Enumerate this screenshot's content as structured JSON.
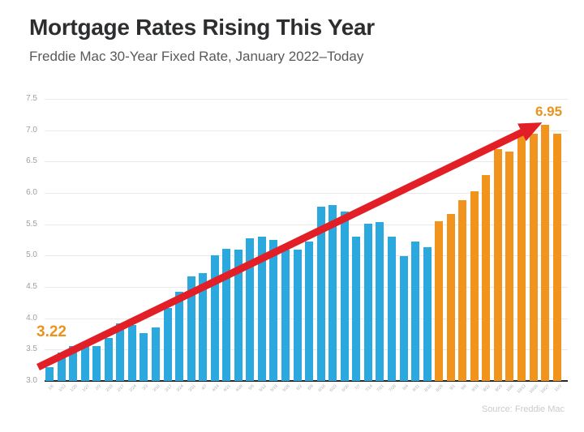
{
  "header": {
    "title": "Mortgage Rates Rising This Year",
    "subtitle": "Freddie Mac 30-Year Fixed Rate, January 2022–Today"
  },
  "chart_data": {
    "type": "bar",
    "title": "Mortgage Rates Rising This Year",
    "subtitle": "Freddie Mac 30-Year Fixed Rate, January 2022–Today",
    "categories": [
      "1/6",
      "1/13",
      "1/20",
      "1/27",
      "2/3",
      "2/10",
      "2/17",
      "2/24",
      "3/3",
      "3/10",
      "3/17",
      "3/24",
      "3/31",
      "4/7",
      "4/14",
      "4/21",
      "4/28",
      "5/5",
      "5/12",
      "5/19",
      "5/26",
      "6/2",
      "6/9",
      "6/16",
      "6/23",
      "6/30",
      "7/7",
      "7/14",
      "7/21",
      "7/28",
      "8/4",
      "8/11",
      "8/18",
      "8/25",
      "9/1",
      "9/8",
      "9/15",
      "9/22",
      "9/29",
      "10/6",
      "10/13",
      "10/20",
      "10/27",
      "11/3"
    ],
    "values": [
      3.22,
      3.45,
      3.56,
      3.55,
      3.55,
      3.69,
      3.92,
      3.89,
      3.76,
      3.85,
      4.16,
      4.42,
      4.67,
      4.72,
      5.0,
      5.11,
      5.1,
      5.27,
      5.3,
      5.25,
      5.1,
      5.09,
      5.23,
      5.78,
      5.81,
      5.7,
      5.3,
      5.51,
      5.54,
      5.3,
      4.99,
      5.22,
      5.13,
      5.55,
      5.66,
      5.89,
      6.02,
      6.29,
      6.7,
      6.66,
      6.92,
      6.94,
      7.08,
      6.95
    ],
    "xlabel": "",
    "ylabel": "",
    "ylim": [
      3.0,
      7.5
    ],
    "ytick_step": 0.5,
    "ytick_labels": [
      "3.0",
      "3.5",
      "4.0",
      "4.5",
      "5.0",
      "5.5",
      "6.0",
      "6.5",
      "7.0",
      "7.5"
    ],
    "grid": true,
    "bar_colors": {
      "default": "#2ba9de",
      "highlight": "#f0941e",
      "highlight_from_index": 33
    },
    "annotations": {
      "start_value_label": "3.22",
      "end_value_label": "6.95",
      "value_label_color": "#e8941d",
      "trend_arrow_color": "#e21e26"
    },
    "source": "Source: Freddie Mac"
  }
}
